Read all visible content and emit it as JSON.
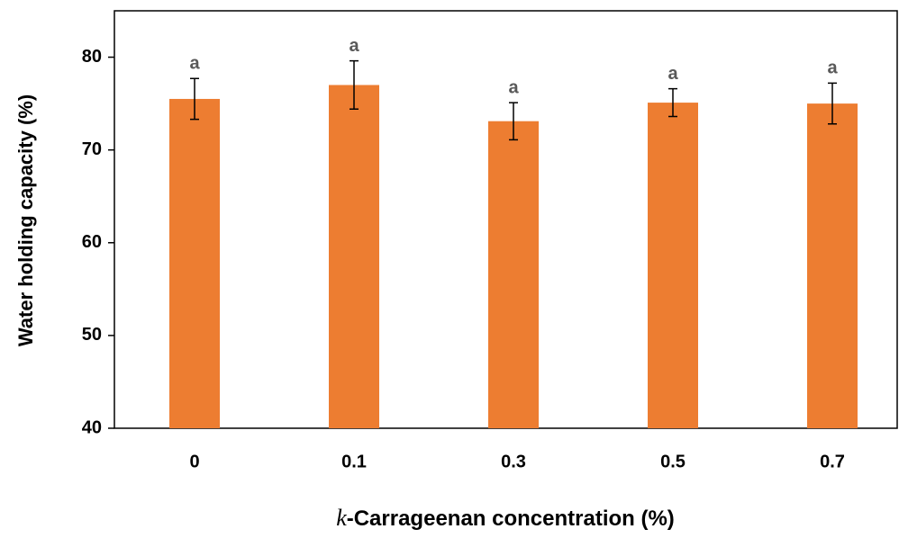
{
  "chart_data": {
    "type": "bar",
    "x_label_symbol": "k",
    "x_label": "-Carrageenan concentration (%)",
    "y_label": "Water holding capacity (%)",
    "categories": [
      "0",
      "0.1",
      "0.3",
      "0.5",
      "0.7"
    ],
    "series": [
      {
        "name": "Water holding capacity",
        "color": "#ed7d31",
        "values": [
          75.5,
          77.0,
          73.1,
          75.1,
          75.0
        ],
        "errors": [
          2.2,
          2.6,
          2.0,
          1.5,
          2.2
        ],
        "letters": [
          "a",
          "a",
          "a",
          "a",
          "a"
        ]
      }
    ],
    "ylim": [
      40,
      85
    ],
    "yticks": [
      40,
      50,
      60,
      70,
      80
    ],
    "grid": false
  }
}
